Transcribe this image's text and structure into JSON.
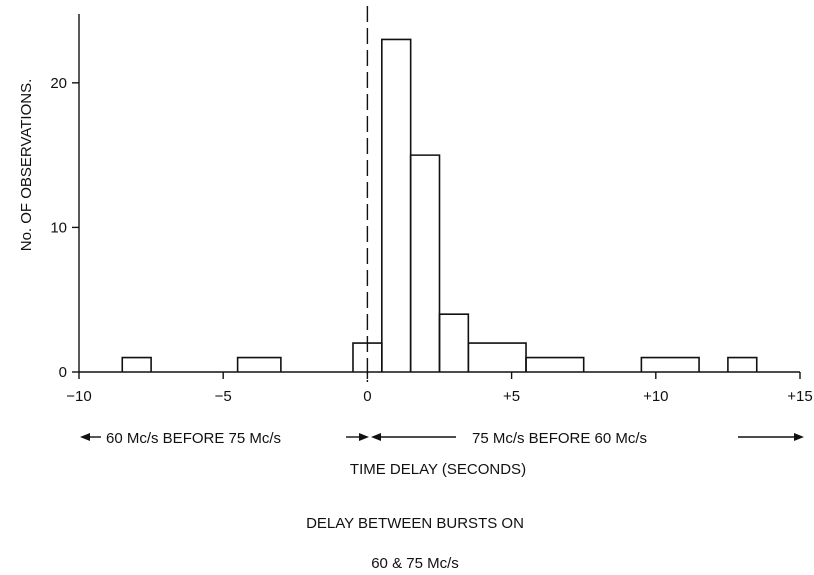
{
  "chart_data": {
    "type": "bar",
    "subtype": "histogram",
    "xlabel": "TIME DELAY (SECONDS)",
    "ylabel": "No. OF OBSERVATIONS.",
    "caption_line1": "DELAY BETWEEN BURSTS ON",
    "caption_line2": "60 & 75 Mc/s",
    "xlim": [
      -10,
      15
    ],
    "ylim": [
      0,
      24
    ],
    "x_ticks": [
      {
        "value": -10,
        "label": "−10"
      },
      {
        "value": -5,
        "label": "−5"
      },
      {
        "value": 0,
        "label": "0"
      },
      {
        "value": 5,
        "label": "+5"
      },
      {
        "value": 10,
        "label": "+10"
      },
      {
        "value": 15,
        "label": "+15"
      }
    ],
    "y_ticks": [
      {
        "value": 0,
        "label": "0"
      },
      {
        "value": 10,
        "label": "10"
      },
      {
        "value": 20,
        "label": "20"
      }
    ],
    "zero_line": {
      "x": 0,
      "style": "dashed"
    },
    "bins": [
      {
        "start": -8.5,
        "end": -7.5,
        "count": 1
      },
      {
        "start": -4.5,
        "end": -3.0,
        "count": 1
      },
      {
        "start": -0.5,
        "end": 0.5,
        "count": 2
      },
      {
        "start": 0.5,
        "end": 1.5,
        "count": 23
      },
      {
        "start": 1.5,
        "end": 2.5,
        "count": 15
      },
      {
        "start": 2.5,
        "end": 3.5,
        "count": 4
      },
      {
        "start": 3.5,
        "end": 5.5,
        "count": 2
      },
      {
        "start": 5.5,
        "end": 7.5,
        "count": 1
      },
      {
        "start": 9.5,
        "end": 11.5,
        "count": 1
      },
      {
        "start": 12.5,
        "end": 13.5,
        "count": 1
      }
    ],
    "annotations": {
      "left_range": "60 Mc/s BEFORE 75 Mc/s",
      "right_range": "75 Mc/s BEFORE 60 Mc/s"
    }
  }
}
